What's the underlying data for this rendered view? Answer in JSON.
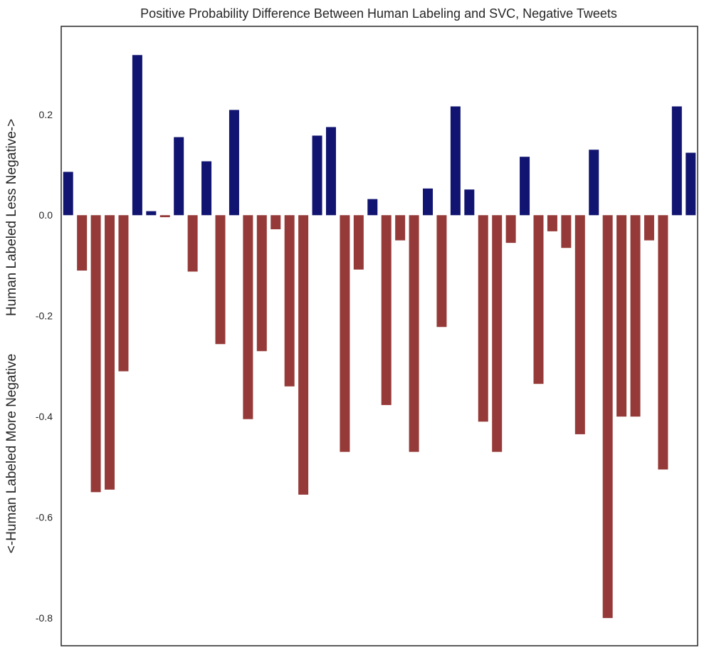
{
  "colors": {
    "positive": "#111470",
    "negative": "#953a38",
    "frame": "#262626",
    "background": "#ffffff"
  },
  "chart_data": {
    "type": "bar",
    "title": "Positive Probability Difference Between Human Labeling and SVC, Negative Tweets",
    "xlabel": "",
    "ylabel": "<-Human Labeled More Negative          Human Labeled Less Negative->",
    "ylim": [
      -0.855,
      0.375
    ],
    "yticks": [
      -0.8,
      -0.6,
      -0.4,
      -0.2,
      0.0,
      0.2
    ],
    "ytick_labels": [
      "-0.8",
      "-0.6",
      "-0.4",
      "-0.2",
      "0.0",
      "0.2"
    ],
    "grid": false,
    "legend": false,
    "values": [
      0.086,
      -0.11,
      -0.55,
      -0.545,
      -0.31,
      0.318,
      0.008,
      -0.004,
      0.155,
      -0.112,
      0.107,
      -0.256,
      0.209,
      -0.405,
      -0.27,
      -0.028,
      -0.34,
      -0.555,
      0.158,
      0.175,
      -0.47,
      -0.108,
      0.032,
      -0.377,
      -0.05,
      -0.47,
      0.053,
      -0.222,
      0.216,
      0.051,
      -0.41,
      -0.47,
      -0.055,
      0.116,
      -0.335,
      -0.032,
      -0.065,
      -0.435,
      0.13,
      -0.8,
      -0.4,
      -0.4,
      -0.05,
      -0.505,
      0.216,
      0.124
    ]
  }
}
